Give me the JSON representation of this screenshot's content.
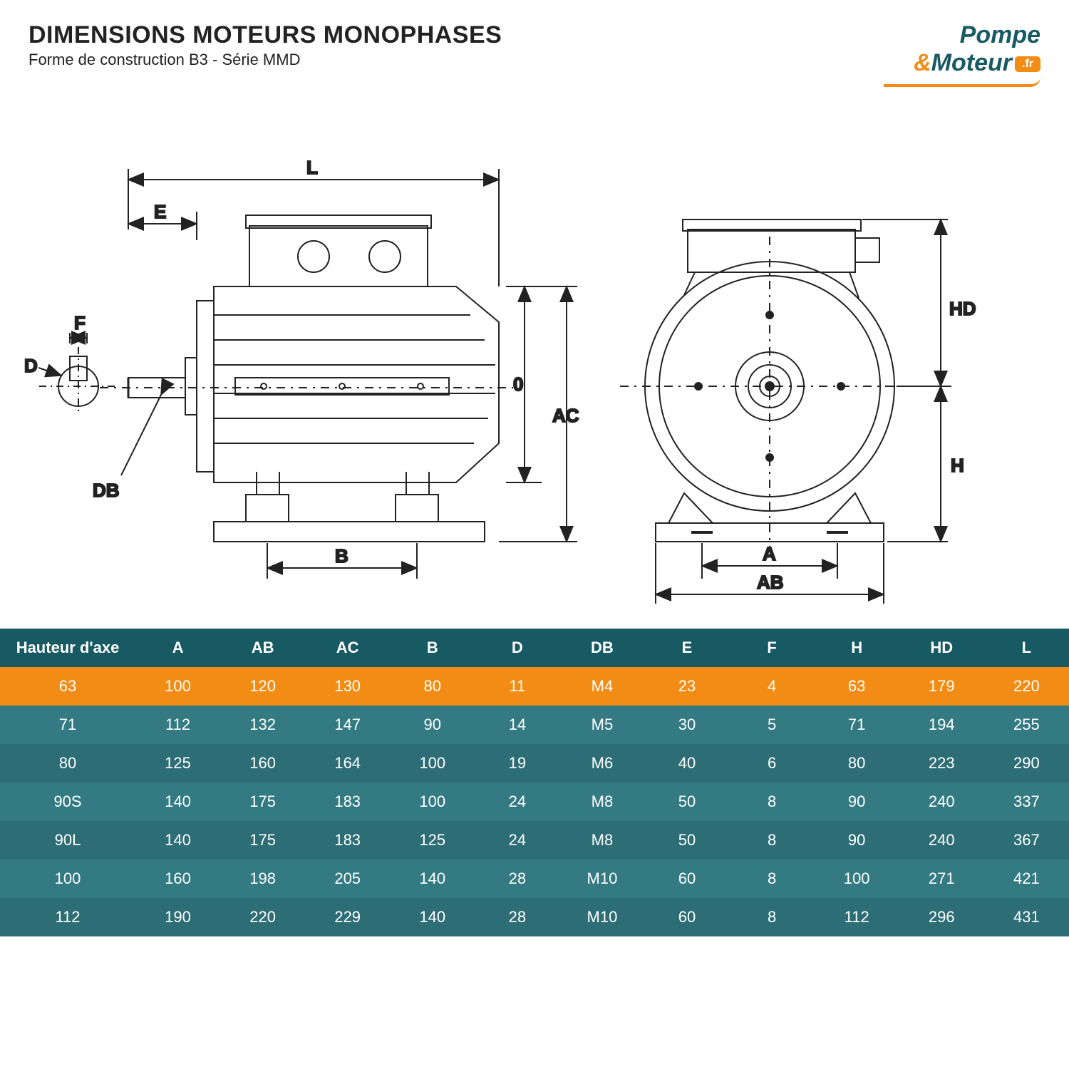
{
  "header": {
    "title": "DIMENSIONS MOTEURS MONOPHASES",
    "subtitle": "Forme de construction B3 - Série MMD"
  },
  "logo": {
    "line1": "Pompe",
    "amp": "&",
    "line2": "Moteur",
    "suffix": ".fr"
  },
  "diagram": {
    "labels": {
      "L": "L",
      "E": "E",
      "F": "F",
      "D": "D",
      "DB": "DB",
      "B": "B",
      "O": "0",
      "AC": "AC",
      "A": "A",
      "AB": "AB",
      "H": "H",
      "HD": "HD"
    },
    "stroke": "#222222",
    "stroke_width": 2
  },
  "table": {
    "columns": [
      "Hauteur d'axe",
      "A",
      "AB",
      "AC",
      "B",
      "D",
      "DB",
      "E",
      "F",
      "H",
      "HD",
      "L"
    ],
    "rows": [
      {
        "hl": true,
        "cells": [
          "63",
          "100",
          "120",
          "130",
          "80",
          "11",
          "M4",
          "23",
          "4",
          "63",
          "179",
          "220"
        ]
      },
      {
        "hl": false,
        "cells": [
          "71",
          "112",
          "132",
          "147",
          "90",
          "14",
          "M5",
          "30",
          "5",
          "71",
          "194",
          "255"
        ]
      },
      {
        "hl": false,
        "cells": [
          "80",
          "125",
          "160",
          "164",
          "100",
          "19",
          "M6",
          "40",
          "6",
          "80",
          "223",
          "290"
        ]
      },
      {
        "hl": false,
        "cells": [
          "90S",
          "140",
          "175",
          "183",
          "100",
          "24",
          "M8",
          "50",
          "8",
          "90",
          "240",
          "337"
        ]
      },
      {
        "hl": false,
        "cells": [
          "90L",
          "140",
          "175",
          "183",
          "125",
          "24",
          "M8",
          "50",
          "8",
          "90",
          "240",
          "367"
        ]
      },
      {
        "hl": false,
        "cells": [
          "100",
          "160",
          "198",
          "205",
          "140",
          "28",
          "M10",
          "60",
          "8",
          "100",
          "271",
          "421"
        ]
      },
      {
        "hl": false,
        "cells": [
          "112",
          "190",
          "220",
          "229",
          "140",
          "28",
          "M10",
          "60",
          "8",
          "112",
          "296",
          "431"
        ]
      }
    ],
    "colors": {
      "header_bg": "#175a63",
      "row_alt_a": "#337a82",
      "row_alt_b": "#2d6e76",
      "highlight": "#f28c14",
      "text": "#ffffff"
    }
  }
}
